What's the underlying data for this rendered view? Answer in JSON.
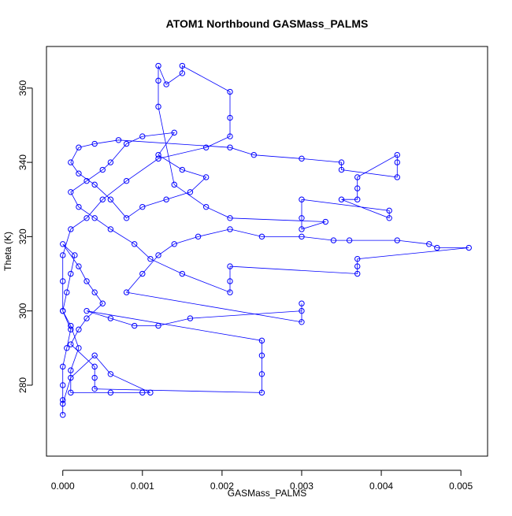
{
  "chart_data": {
    "type": "scatter-line",
    "title": "ATOM1 Northbound GASMass_PALMS",
    "x_label": "GASMass_PALMS",
    "y_label": "Theta (K)",
    "xlim": [
      -0.000205,
      0.005335
    ],
    "ylim": [
      260.9,
      371.2
    ],
    "xticks": [
      {
        "value": 0,
        "label": "0.000"
      },
      {
        "value": 0.001,
        "label": "0.001"
      },
      {
        "value": 0.002,
        "label": "0.002"
      },
      {
        "value": 0.003,
        "label": "0.003"
      },
      {
        "value": 0.004,
        "label": "0.004"
      },
      {
        "value": 0.005,
        "label": "0.005"
      }
    ],
    "yticks": [
      280,
      300,
      320,
      340,
      360
    ],
    "series": [
      {
        "color": "#0000ff",
        "x": [
          0,
          0,
          0,
          0,
          5e-05,
          0.0001,
          0,
          5e-05,
          0.0001,
          0.00015,
          0,
          0.0002,
          0.0003,
          0.0004,
          0.0005,
          0.0003,
          0.0002,
          0.0001,
          0.0004,
          0.0004,
          0.0004,
          0.0025,
          0.0025,
          0.0025,
          0.0025,
          0.0003,
          0.0006,
          0.0009,
          0.0012,
          0.0016,
          0.003,
          0.003,
          0.003,
          0.0008,
          0.001,
          0.0012,
          0.0014,
          0.0017,
          0.0021,
          0.0025,
          0.003,
          0.0034,
          0.0036,
          0.0042,
          0.0046,
          0.0047,
          0.0051,
          0.0037,
          0.0037,
          0.0037,
          0.0021,
          0.0021,
          0.0021,
          0.0015,
          0.0011,
          0.0009,
          0.0006,
          0.0004,
          0.0002,
          0.0001,
          0.0003,
          0.0005,
          0.0006,
          0.0008,
          0.001,
          0.0014,
          0.0012,
          0.0015,
          0.0018,
          0.0016,
          0.0013,
          0.001,
          0.0008,
          0.0006,
          0.0004,
          0.0002,
          0.0001,
          0.0002,
          0.0004,
          0.0007,
          0.0021,
          0.0024,
          0.003,
          0.0035,
          0.0035,
          0.0042,
          0.0042,
          0.0042,
          0.0037,
          0.0037,
          0.0037,
          0.0035,
          0.0041,
          0.0041,
          0.003,
          0.003,
          0.003,
          0.0033,
          0.0021,
          0.0018,
          0.0014,
          0.0012,
          0.0012,
          0.0012,
          0.0013,
          0.0015,
          0.0015,
          0.0021,
          0.0021,
          0.0021,
          0.0018,
          0.0012,
          0.0008,
          0.0005,
          0.0003,
          0.0001,
          0,
          0,
          0,
          0.0001,
          0.0002,
          0.0001,
          0.0001,
          0.0006,
          0.001,
          0.0011,
          0.0006,
          0.0004,
          0.0001,
          0
        ],
        "y": [
          272,
          276,
          280,
          285,
          290,
          295,
          300,
          305,
          310,
          315,
          318,
          312,
          308,
          305,
          302,
          298,
          295,
          291,
          285,
          282,
          279,
          278,
          283,
          288,
          292,
          300,
          298,
          296,
          296,
          298,
          300,
          302,
          297,
          305,
          310,
          315,
          318,
          320,
          322,
          320,
          320,
          319,
          319,
          319,
          318,
          317,
          317,
          314,
          312,
          310,
          312,
          308,
          305,
          310,
          314,
          318,
          322,
          325,
          328,
          332,
          335,
          338,
          340,
          345,
          347,
          348,
          342,
          338,
          336,
          332,
          330,
          328,
          325,
          330,
          334,
          337,
          340,
          344,
          345,
          346,
          344,
          342,
          341,
          340,
          338,
          336,
          340,
          342,
          336,
          333,
          330,
          330,
          325,
          327,
          330,
          325,
          322,
          324,
          325,
          328,
          334,
          355,
          362,
          366,
          361,
          364,
          366,
          359,
          352,
          347,
          344,
          341,
          335,
          330,
          325,
          322,
          315,
          308,
          300,
          296,
          290,
          284,
          278,
          278,
          278,
          278,
          283,
          288,
          282,
          275
        ]
      }
    ]
  }
}
